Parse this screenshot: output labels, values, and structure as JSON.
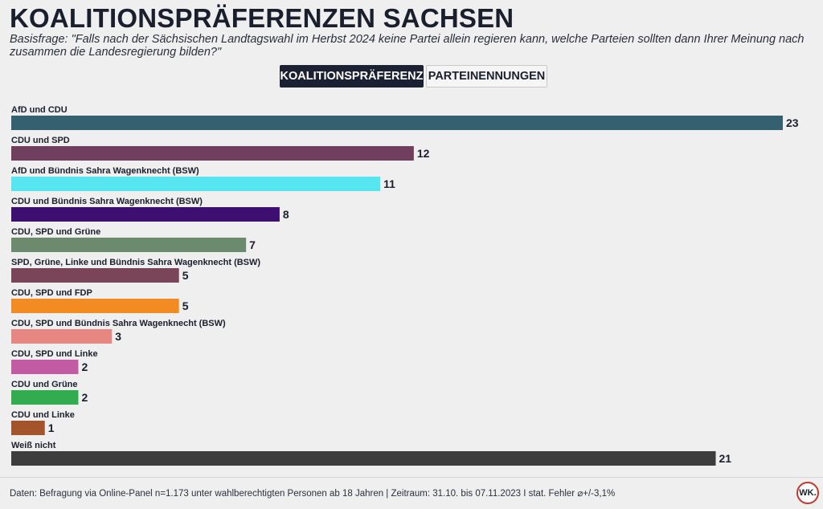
{
  "header": {
    "title": "KOALITIONSPRÄFERENZEN SACHSEN",
    "subtitle": "Basisfrage: \"Falls nach der Sächsischen Landtagswahl im Herbst 2024 keine Partei allein regieren kann, welche Parteien sollten dann Ihrer Meinung nach zusammen die Landesregierung bilden?\""
  },
  "tabs": [
    {
      "label": "KOALITIONSPRÄFERENZ",
      "active": true
    },
    {
      "label": "PARTEINENNUNGEN",
      "active": false
    }
  ],
  "chart_data": {
    "type": "bar",
    "orientation": "horizontal",
    "categories": [
      "AfD und CDU",
      "CDU und SPD",
      "AfD und Bündnis Sahra Wagenknecht (BSW)",
      "CDU und Bündnis Sahra Wagenknecht (BSW)",
      "CDU, SPD und Grüne",
      "SPD, Grüne, Linke und Bündnis Sahra Wagenknecht (BSW)",
      "CDU, SPD und FDP",
      "CDU, SPD und Bündnis Sahra Wagenknecht (BSW)",
      "CDU, SPD und Linke",
      "CDU und Grüne",
      "CDU und Linke",
      "Weiß nicht"
    ],
    "values": [
      23,
      12,
      11,
      8,
      7,
      5,
      5,
      3,
      2,
      2,
      1,
      21
    ],
    "colors": [
      "#34606f",
      "#713f5e",
      "#55e6f0",
      "#3c0f70",
      "#6b8a6e",
      "#7b4559",
      "#f28c22",
      "#e68783",
      "#c25aa4",
      "#31ad50",
      "#a4542a",
      "#3d3d3d"
    ],
    "xlim": [
      0,
      23
    ],
    "grid": false,
    "legend": "none",
    "value_labels": true
  },
  "footer": {
    "source": "Daten: Befragung via Online-Panel n=1.173 unter wahlberechtigten Personen ab 18 Jahren | Zeitraum: 31.10. bis 07.11.2023 I stat. Fehler ⌀+/-3,1%",
    "logo": "WK."
  }
}
